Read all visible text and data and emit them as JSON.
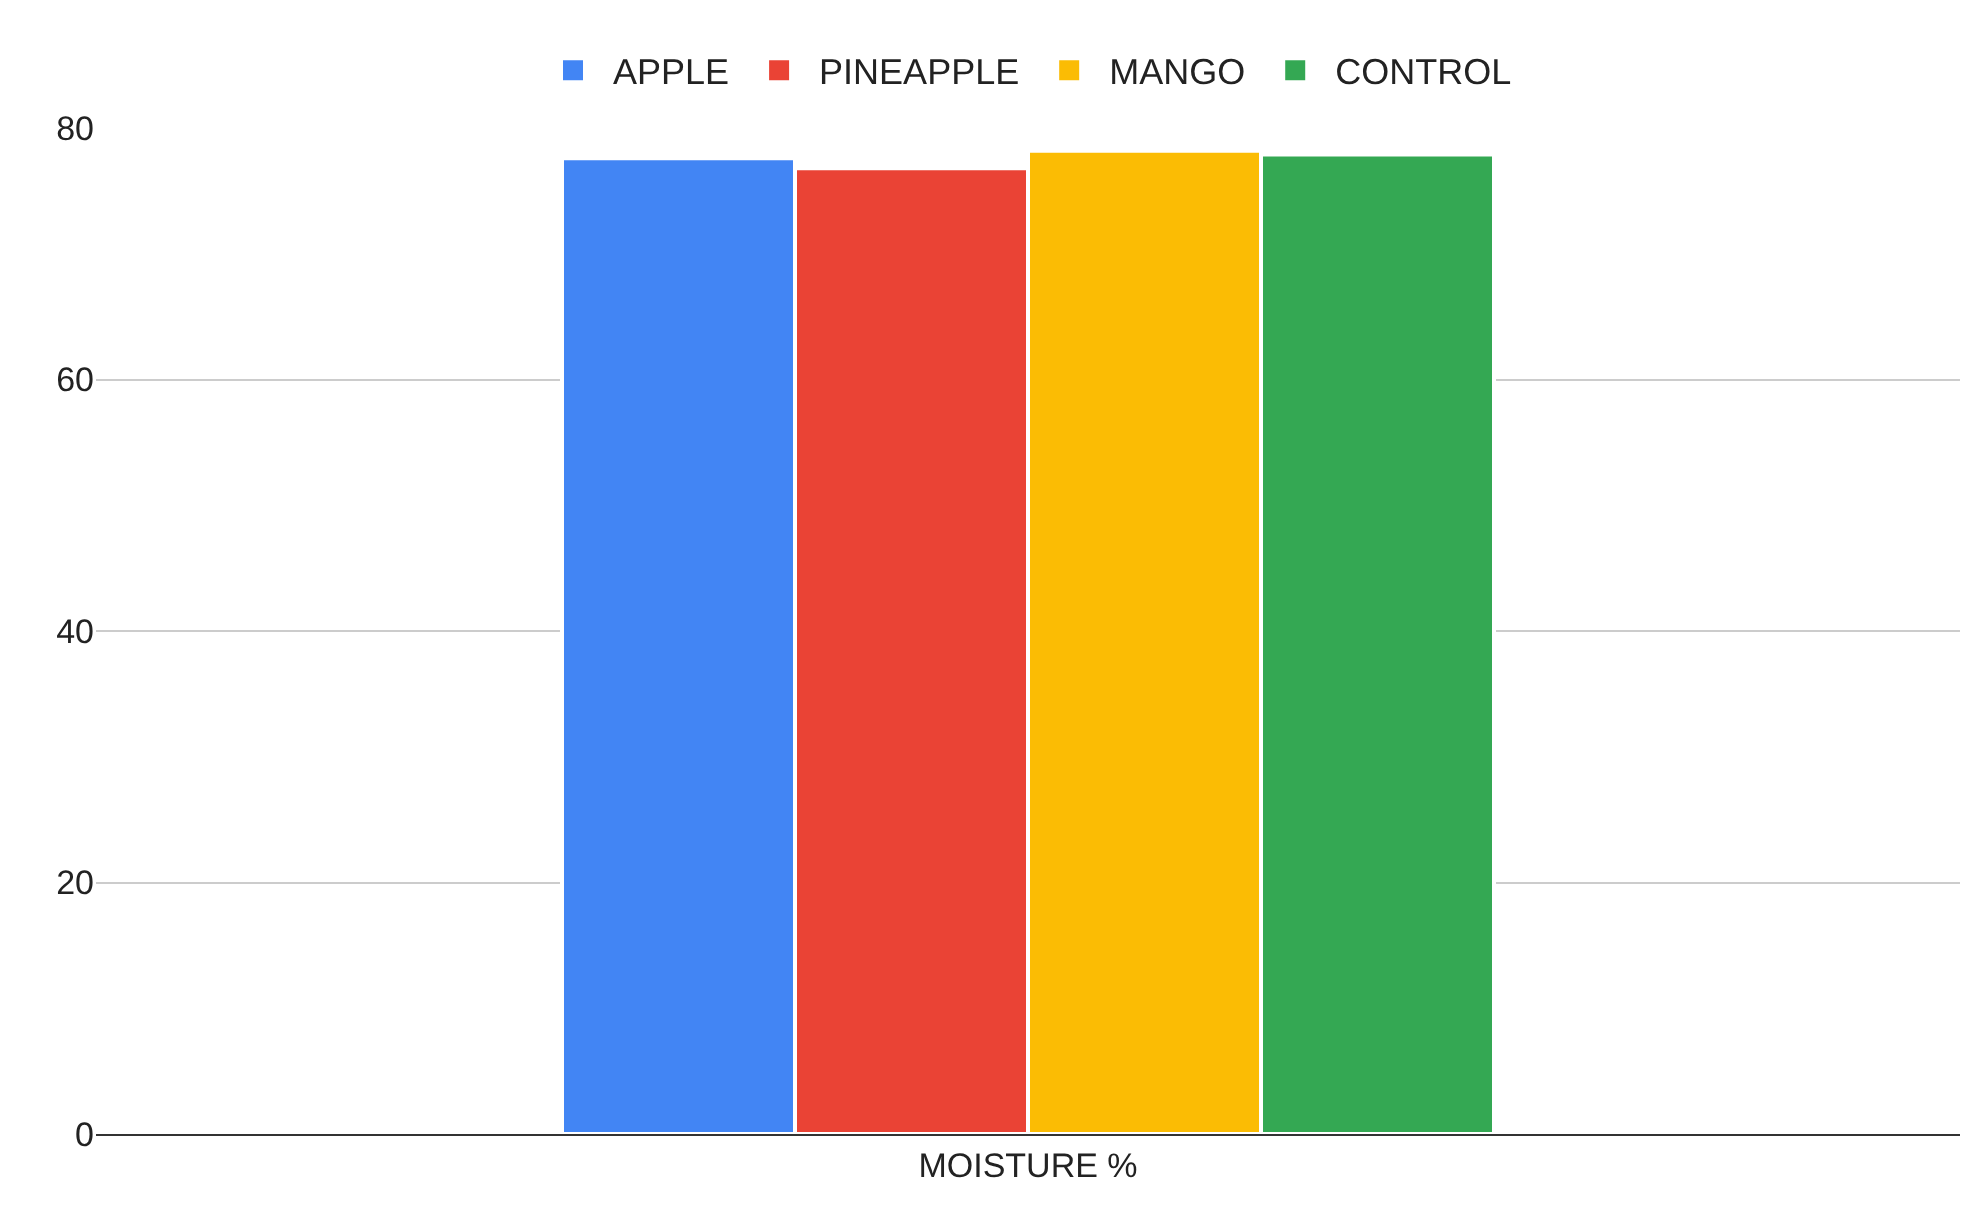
{
  "chart_data": {
    "type": "bar",
    "categories": [
      "MOISTURE %"
    ],
    "series": [
      {
        "name": "APPLE",
        "color": "#4285f4",
        "values": [
          77.6
        ]
      },
      {
        "name": "PINEAPPLE",
        "color": "#ea4335",
        "values": [
          76.8
        ]
      },
      {
        "name": "MANGO",
        "color": "#fbbc04",
        "values": [
          78.2
        ]
      },
      {
        "name": "CONTROL",
        "color": "#34a853",
        "values": [
          77.9
        ]
      }
    ],
    "ylim": [
      0,
      80
    ],
    "yticks": [
      0,
      20,
      40,
      60,
      80
    ],
    "grid": "y",
    "legend": "top"
  }
}
